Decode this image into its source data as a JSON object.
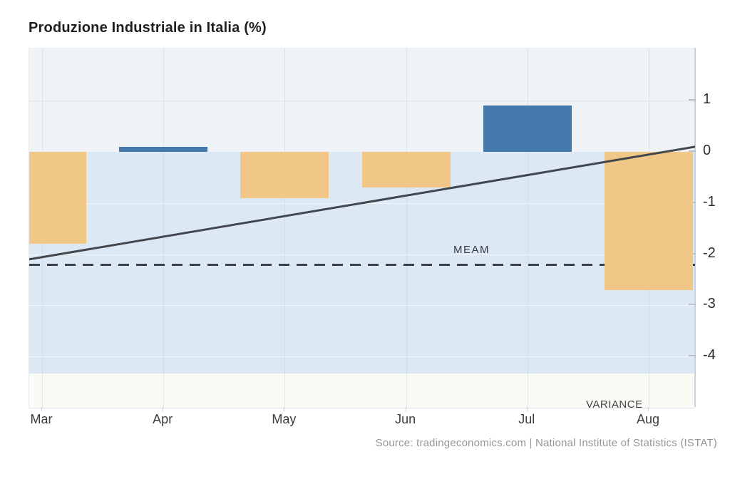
{
  "title": "Produzione Industriale in Italia (%)",
  "source": "Source: tradingeconomics.com | National Institute of Statistics (ISTAT)",
  "annotations": {
    "mean_label": "MEAM",
    "variance_label": "VARIANCE"
  },
  "colors": {
    "positive_bar": "#4579ab",
    "negative_bar": "#f1c787",
    "band_above_zero": "#eff3f6",
    "band_below_zero": "#dce8f4",
    "band_bottom": "#fbfbf6",
    "trend_line": "#42474d",
    "mean_line": "#394049",
    "gridline_light": "#dfe5ea",
    "gridline_on_blue": "rgba(255,255,255,0.55)",
    "axis_line": "#c9d1d9"
  },
  "chart_data": {
    "type": "bar",
    "title": "Produzione Industriale in Italia (%)",
    "categories": [
      "Mar",
      "Apr",
      "May",
      "Jun",
      "Jul",
      "Aug"
    ],
    "values": [
      -1.8,
      0.1,
      -0.9,
      -0.7,
      0.9,
      -2.7
    ],
    "positive_color": "#4579ab",
    "negative_color": "#f1c787",
    "y_ticks": [
      1,
      0,
      -1,
      -2,
      -3,
      -4
    ],
    "ylim": [
      -5,
      2
    ],
    "mean_line": -2.2,
    "trend_line": {
      "start": -2.1,
      "end": 0.1
    },
    "below_zero_shade_limit": -4.33,
    "legend": "none",
    "grid": "faint vertical gridlines at each month, faint horizontal gridlines at integer ticks",
    "xlabel": "",
    "ylabel": ""
  }
}
